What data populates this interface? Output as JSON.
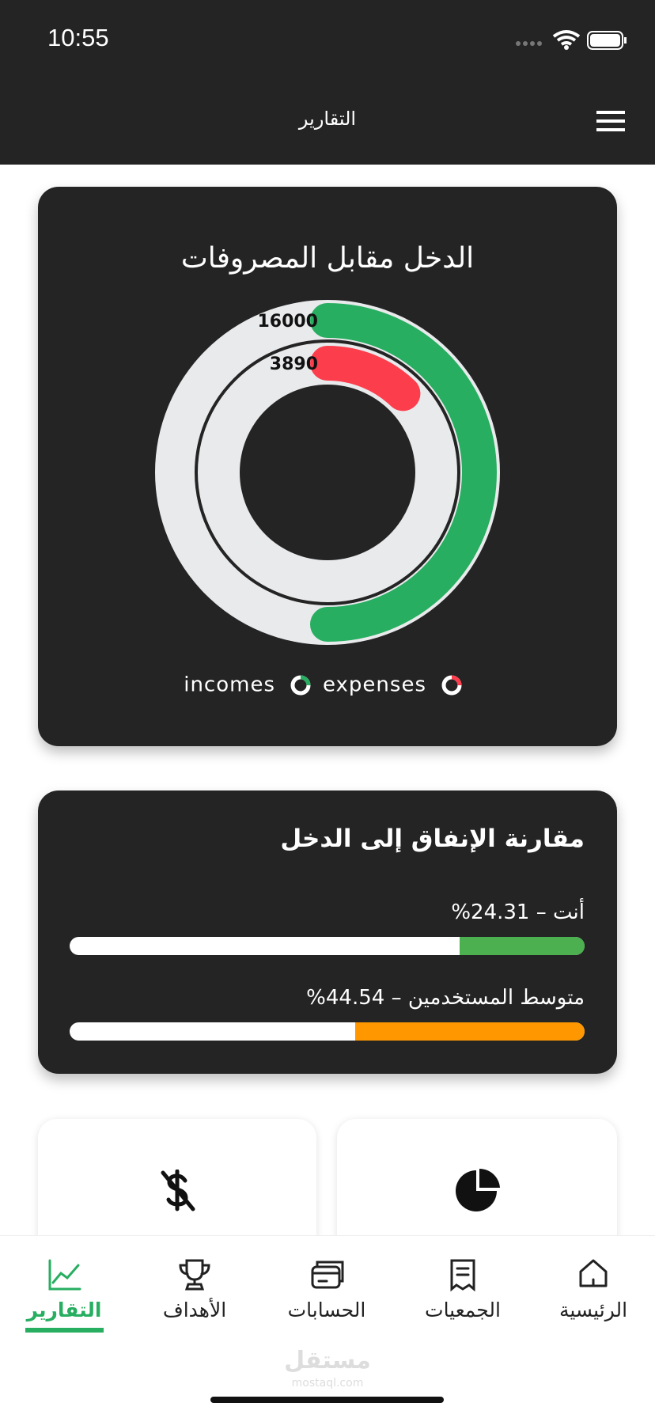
{
  "status_bar": {
    "time": "10:55"
  },
  "header": {
    "title": "التقارير"
  },
  "income_vs_expenses": {
    "title": "الدخل مقابل المصروفات",
    "rings": [
      {
        "name": "incomes",
        "value": 16000,
        "color": "#27ae60"
      },
      {
        "name": "expenses",
        "value": 3890,
        "color": "#fc3d4c"
      }
    ]
  },
  "spending_comparison": {
    "title": "مقارنة الإنفاق إلى الدخل",
    "separator": "–",
    "rows": [
      {
        "label": "أنت",
        "value_label": "%24.31",
        "value": 24.31,
        "color": "#4caf50"
      },
      {
        "label": "متوسط المستخدمين",
        "value_label": "%44.54",
        "value": 44.54,
        "color": "#ff9800"
      }
    ]
  },
  "tab_bar": {
    "tabs": [
      "الرئيسية",
      "الجمعيات",
      "الحسابات",
      "الأهداف",
      "التقارير"
    ],
    "active": 4
  },
  "watermark": {
    "name": "مستقل",
    "url": "mostaql.com"
  }
}
